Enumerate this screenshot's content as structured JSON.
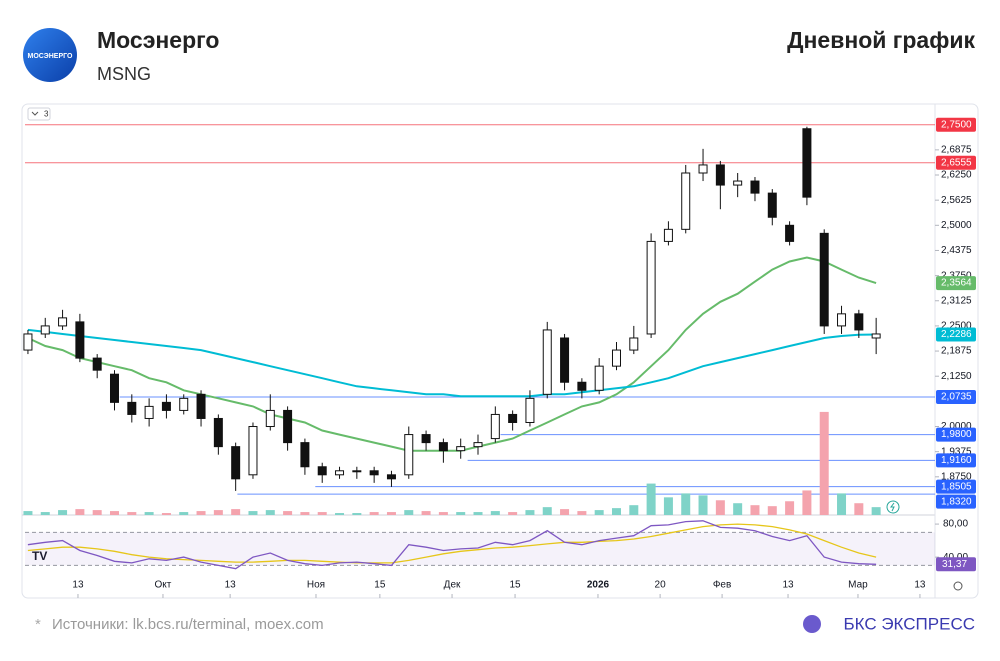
{
  "header": {
    "title": "Мосэнерго",
    "ticker": "MSNG",
    "chart_kind": "Дневной график",
    "logo_text": "МОСЭНЕРГО"
  },
  "footer": {
    "asterisk": "*",
    "sources": "Источники: lk.bcs.ru/terminal, moex.com",
    "brand": "БКС ЭКСПРЕСС"
  },
  "chart_data": {
    "type": "candlestick",
    "collapsed_count": "3",
    "xlim": [
      -0.17,
      52.4
    ],
    "xticks": [
      {
        "value": 2.89,
        "label": "13"
      },
      {
        "value": 7.8,
        "label": "Окт"
      },
      {
        "value": 11.68,
        "label": "13"
      },
      {
        "value": 16.64,
        "label": "Ноя"
      },
      {
        "value": 20.33,
        "label": "15"
      },
      {
        "value": 24.5,
        "label": "Дек"
      },
      {
        "value": 28.14,
        "label": "15"
      },
      {
        "value": 32.93,
        "label": "2026"
      },
      {
        "value": 36.52,
        "label": "20"
      },
      {
        "value": 40.1,
        "label": "Фев"
      },
      {
        "value": 43.91,
        "label": "13"
      },
      {
        "value": 47.95,
        "label": "Мар"
      },
      {
        "value": 51.53,
        "label": "13"
      }
    ],
    "ylim": [
      1.8,
      2.794
    ],
    "yticks": [
      {
        "value": 2.6875,
        "label": "2,6875"
      },
      {
        "value": 2.625,
        "label": "2,6250"
      },
      {
        "value": 2.5625,
        "label": "2,5625"
      },
      {
        "value": 2.5,
        "label": "2,5000"
      },
      {
        "value": 2.4375,
        "label": "2,4375"
      },
      {
        "value": 2.375,
        "label": "2,3750"
      },
      {
        "value": 2.3125,
        "label": "2,3125"
      },
      {
        "value": 2.25,
        "label": "2,2500"
      },
      {
        "value": 2.1875,
        "label": "2,1875"
      },
      {
        "value": 2.125,
        "label": "2,1250"
      },
      {
        "value": 2.0,
        "label": "2,0000"
      },
      {
        "value": 1.9375,
        "label": "1,9375"
      },
      {
        "value": 1.875,
        "label": "1,8750"
      }
    ],
    "open": [
      2.19,
      2.23,
      2.25,
      2.26,
      2.17,
      2.13,
      2.06,
      2.02,
      2.06,
      2.04,
      2.08,
      2.02,
      1.95,
      1.88,
      2.0,
      2.04,
      1.96,
      1.9,
      1.88,
      1.89,
      1.89,
      1.88,
      1.88,
      1.98,
      1.96,
      1.94,
      1.95,
      1.97,
      2.03,
      2.01,
      2.08,
      2.22,
      2.11,
      2.09,
      2.15,
      2.19,
      2.23,
      2.46,
      2.49,
      2.63,
      2.65,
      2.6,
      2.61,
      2.58,
      2.5,
      2.74,
      2.48,
      2.25,
      2.28,
      2.22
    ],
    "high": [
      2.24,
      2.27,
      2.29,
      2.28,
      2.18,
      2.14,
      2.08,
      2.07,
      2.08,
      2.08,
      2.09,
      2.03,
      1.96,
      2.01,
      2.08,
      2.05,
      1.97,
      1.91,
      1.9,
      1.9,
      1.9,
      1.89,
      2.0,
      1.99,
      1.97,
      1.97,
      1.98,
      2.05,
      2.04,
      2.09,
      2.26,
      2.23,
      2.12,
      2.17,
      2.21,
      2.25,
      2.48,
      2.51,
      2.65,
      2.69,
      2.66,
      2.63,
      2.62,
      2.59,
      2.51,
      2.745,
      2.49,
      2.3,
      2.29,
      2.27
    ],
    "low": [
      2.18,
      2.22,
      2.24,
      2.16,
      2.12,
      2.04,
      2.01,
      2.0,
      2.02,
      2.03,
      2.0,
      1.93,
      1.84,
      1.87,
      1.99,
      1.94,
      1.88,
      1.86,
      1.87,
      1.87,
      1.86,
      1.85,
      1.87,
      1.94,
      1.91,
      1.92,
      1.93,
      1.96,
      1.99,
      2.0,
      2.07,
      2.09,
      2.07,
      2.08,
      2.14,
      2.18,
      2.22,
      2.45,
      2.48,
      2.61,
      2.54,
      2.57,
      2.56,
      2.5,
      2.45,
      2.55,
      2.23,
      2.23,
      2.22,
      2.18
    ],
    "close": [
      2.23,
      2.25,
      2.27,
      2.17,
      2.14,
      2.06,
      2.03,
      2.05,
      2.04,
      2.07,
      2.02,
      1.95,
      1.87,
      2.0,
      2.04,
      1.96,
      1.9,
      1.88,
      1.89,
      1.89,
      1.88,
      1.87,
      1.98,
      1.96,
      1.94,
      1.95,
      1.96,
      2.03,
      2.01,
      2.07,
      2.24,
      2.11,
      2.09,
      2.15,
      2.19,
      2.22,
      2.46,
      2.49,
      2.63,
      2.65,
      2.6,
      2.61,
      2.58,
      2.52,
      2.46,
      2.57,
      2.25,
      2.28,
      2.24,
      2.23
    ],
    "up_color": "#ffffff",
    "down_color": "#111111",
    "volume": [
      4,
      3,
      5,
      6,
      5,
      4,
      3,
      3,
      2,
      3,
      4,
      5,
      6,
      4,
      5,
      4,
      3,
      3,
      2,
      2,
      3,
      3,
      5,
      4,
      3,
      3,
      3,
      4,
      3,
      5,
      8,
      6,
      4,
      5,
      7,
      10,
      32,
      18,
      22,
      20,
      15,
      12,
      10,
      9,
      14,
      25,
      105,
      22,
      12,
      8
    ],
    "volume_lim": [
      0,
      110
    ],
    "volume_up_color": "#7fd3c8",
    "volume_down_color": "#f4a3ad",
    "ma_series": [
      {
        "color": "#66bb6a",
        "last_value_label": "2,3564",
        "values": [
          2.22,
          2.2,
          2.19,
          2.17,
          2.16,
          2.15,
          2.14,
          2.12,
          2.11,
          2.09,
          2.08,
          2.07,
          2.06,
          2.05,
          2.03,
          2.02,
          2.01,
          1.99,
          1.98,
          1.97,
          1.96,
          1.95,
          1.94,
          1.94,
          1.94,
          1.94,
          1.95,
          1.96,
          1.97,
          1.99,
          2.01,
          2.03,
          2.05,
          2.06,
          2.08,
          2.11,
          2.15,
          2.19,
          2.24,
          2.28,
          2.31,
          2.33,
          2.36,
          2.39,
          2.41,
          2.42,
          2.41,
          2.39,
          2.37,
          2.3564
        ]
      },
      {
        "color": "#00bcd4",
        "last_value_label": "2,2286",
        "values": [
          2.24,
          2.235,
          2.23,
          2.225,
          2.22,
          2.215,
          2.21,
          2.205,
          2.2,
          2.195,
          2.19,
          2.18,
          2.17,
          2.16,
          2.15,
          2.14,
          2.13,
          2.12,
          2.11,
          2.1,
          2.095,
          2.09,
          2.085,
          2.08,
          2.08,
          2.075,
          2.075,
          2.075,
          2.075,
          2.075,
          2.08,
          2.08,
          2.085,
          2.09,
          2.095,
          2.1,
          2.11,
          2.12,
          2.135,
          2.15,
          2.16,
          2.17,
          2.18,
          2.19,
          2.2,
          2.21,
          2.22,
          2.225,
          2.228,
          2.2286
        ]
      }
    ],
    "levels": [
      {
        "value": 2.75,
        "label": "2,7500",
        "color": "#f23645"
      },
      {
        "value": 2.6555,
        "label": "2,6555",
        "color": "#f23645"
      },
      {
        "value": 2.0735,
        "label": "2,0735",
        "color": "#2962ff"
      },
      {
        "value": 1.98,
        "label": "1,9800",
        "color": "#2962ff"
      },
      {
        "value": 1.916,
        "label": "1,9160",
        "color": "#2962ff"
      },
      {
        "value": 1.8505,
        "label": "1,8505",
        "color": "#2962ff"
      },
      {
        "value": 1.832,
        "label": "1,8320",
        "color": "#2962ff"
      }
    ],
    "rsi": {
      "color": "#7e57c2",
      "ma_color": "#e6c619",
      "ylim": [
        22,
        91
      ],
      "bands": [
        30,
        70
      ],
      "yticks": [
        {
          "value": 80,
          "label": "80,00"
        },
        {
          "value": 40,
          "label": "40,00"
        }
      ],
      "last_value_label": "31,37",
      "values": [
        55,
        58,
        60,
        48,
        42,
        35,
        33,
        38,
        36,
        40,
        34,
        30,
        26,
        40,
        45,
        36,
        32,
        30,
        33,
        34,
        32,
        30,
        55,
        52,
        48,
        50,
        51,
        58,
        55,
        60,
        72,
        58,
        55,
        60,
        63,
        66,
        78,
        79,
        83,
        84,
        76,
        75,
        72,
        65,
        60,
        66,
        40,
        34,
        32,
        31.37
      ],
      "ma": [
        48,
        50,
        52,
        52,
        50,
        47,
        43,
        40,
        38,
        37,
        36,
        35,
        34,
        34,
        35,
        36,
        36,
        35,
        34,
        33,
        33,
        33,
        36,
        40,
        44,
        47,
        49,
        51,
        52,
        54,
        56,
        58,
        58,
        59,
        60,
        62,
        65,
        69,
        73,
        77,
        79,
        80,
        79,
        77,
        73,
        68,
        60,
        52,
        45,
        40
      ]
    }
  }
}
